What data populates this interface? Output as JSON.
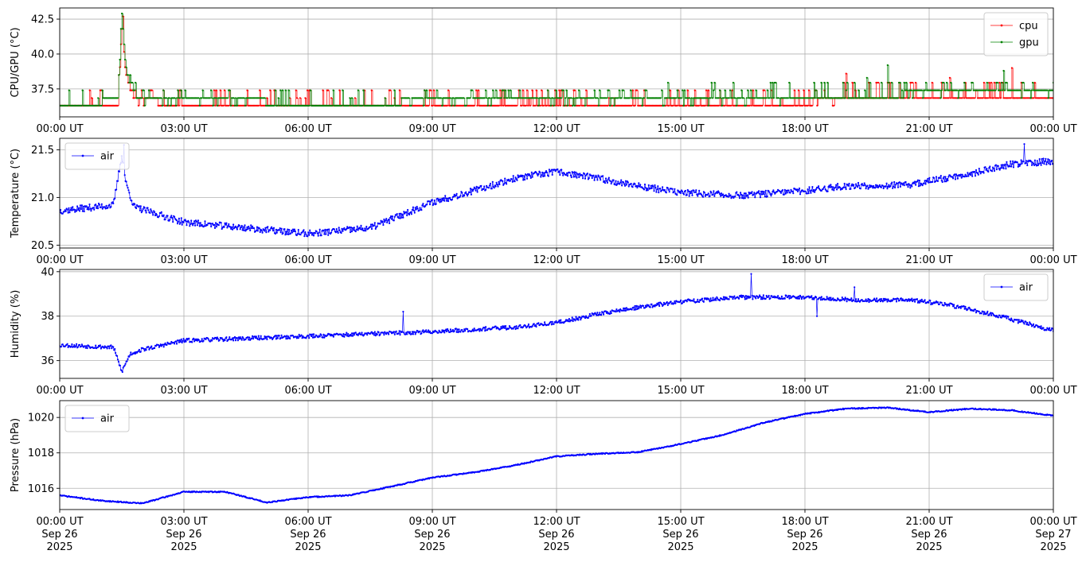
{
  "chart_data": [
    {
      "type": "line",
      "ylabel": "CPU/GPU (°C)",
      "ylim": [
        35.5,
        43.3
      ],
      "yticks": [
        37.5,
        40.0,
        42.5
      ],
      "ytick_labels": [
        "37.5",
        "40.0",
        "42.5"
      ],
      "xlim": [
        0,
        24
      ],
      "xticks": [
        0,
        3,
        6,
        9,
        12,
        15,
        18,
        21,
        24
      ],
      "xtick_labels": [
        "00:00 UT",
        "03:00 UT",
        "06:00 UT",
        "09:00 UT",
        "12:00 UT",
        "15:00 UT",
        "18:00 UT",
        "21:00 UT",
        "00:00 UT"
      ],
      "grid": true,
      "legend_position": "upper right",
      "series": [
        {
          "name": "cpu",
          "color": "#ff0000",
          "knots": [
            [
              0,
              36.4
            ],
            [
              1.4,
              36.4
            ],
            [
              1.5,
              42.0
            ],
            [
              1.55,
              40.0
            ],
            [
              1.6,
              38.5
            ],
            [
              1.7,
              37.5
            ],
            [
              1.85,
              36.6
            ],
            [
              6,
              36.4
            ],
            [
              9,
              36.4
            ],
            [
              12,
              36.4
            ],
            [
              15,
              36.4
            ],
            [
              18,
              36.5
            ],
            [
              19,
              36.9
            ],
            [
              21,
              37.0
            ],
            [
              24,
              37.0
            ]
          ],
          "noise": 0.55,
          "spikes": [
            [
              1.52,
              42.7
            ],
            [
              19.0,
              38.6
            ],
            [
              23.0,
              39.0
            ],
            [
              21.5,
              38.3
            ]
          ],
          "n": 960,
          "seed": 11
        },
        {
          "name": "gpu",
          "color": "#008000",
          "knots": [
            [
              0,
              36.5
            ],
            [
              1.4,
              36.6
            ],
            [
              1.5,
              42.8
            ],
            [
              1.55,
              40.5
            ],
            [
              1.6,
              38.8
            ],
            [
              1.75,
              37.3
            ],
            [
              1.9,
              36.8
            ],
            [
              6,
              36.5
            ],
            [
              9,
              36.6
            ],
            [
              12,
              36.7
            ],
            [
              15,
              36.7
            ],
            [
              18,
              36.9
            ],
            [
              19,
              37.0
            ],
            [
              21,
              37.2
            ],
            [
              24,
              37.3
            ]
          ],
          "noise": 0.5,
          "spikes": [
            [
              1.51,
              42.9
            ],
            [
              20.0,
              39.2
            ],
            [
              22.8,
              38.8
            ],
            [
              19.5,
              38.3
            ]
          ],
          "n": 960,
          "seed": 23
        }
      ]
    },
    {
      "type": "line",
      "ylabel": "Temperature (°C)",
      "ylim": [
        20.47,
        21.62
      ],
      "yticks": [
        20.5,
        21.0,
        21.5
      ],
      "ytick_labels": [
        "20.5",
        "21.0",
        "21.5"
      ],
      "xlim": [
        0,
        24
      ],
      "xticks": [
        0,
        3,
        6,
        9,
        12,
        15,
        18,
        21,
        24
      ],
      "xtick_labels": [
        "00:00 UT",
        "03:00 UT",
        "06:00 UT",
        "09:00 UT",
        "12:00 UT",
        "15:00 UT",
        "18:00 UT",
        "21:00 UT",
        "00:00 UT"
      ],
      "grid": true,
      "legend_position": "upper left",
      "series": [
        {
          "name": "air",
          "color": "#0000ff",
          "knots": [
            [
              0,
              20.86
            ],
            [
              1.3,
              20.92
            ],
            [
              1.5,
              21.45
            ],
            [
              1.6,
              21.15
            ],
            [
              1.8,
              20.9
            ],
            [
              3,
              20.74
            ],
            [
              4.5,
              20.68
            ],
            [
              6,
              20.62
            ],
            [
              7.5,
              20.68
            ],
            [
              9,
              20.95
            ],
            [
              10,
              21.07
            ],
            [
              11,
              21.2
            ],
            [
              12,
              21.27
            ],
            [
              13,
              21.2
            ],
            [
              14,
              21.12
            ],
            [
              15,
              21.05
            ],
            [
              16.5,
              21.02
            ],
            [
              18,
              21.07
            ],
            [
              19,
              21.12
            ],
            [
              20.5,
              21.13
            ],
            [
              22,
              21.25
            ],
            [
              23,
              21.35
            ],
            [
              24,
              21.38
            ]
          ],
          "noise": 0.035,
          "spikes": [
            [
              1.55,
              21.55
            ],
            [
              23.3,
              21.56
            ]
          ],
          "n": 1300,
          "seed": 37
        }
      ]
    },
    {
      "type": "line",
      "ylabel": "Humidity (%)",
      "ylim": [
        35.2,
        40.1
      ],
      "yticks": [
        36,
        38,
        40
      ],
      "ytick_labels": [
        "36",
        "38",
        "40"
      ],
      "xlim": [
        0,
        24
      ],
      "xticks": [
        0,
        3,
        6,
        9,
        12,
        15,
        18,
        21,
        24
      ],
      "xtick_labels": [
        "00:00 UT",
        "03:00 UT",
        "06:00 UT",
        "09:00 UT",
        "12:00 UT",
        "15:00 UT",
        "18:00 UT",
        "21:00 UT",
        "00:00 UT"
      ],
      "grid": true,
      "legend_position": "upper right",
      "series": [
        {
          "name": "air",
          "color": "#0000ff",
          "knots": [
            [
              0,
              36.7
            ],
            [
              1.3,
              36.6
            ],
            [
              1.5,
              35.5
            ],
            [
              1.7,
              36.3
            ],
            [
              2,
              36.5
            ],
            [
              3,
              36.9
            ],
            [
              6,
              37.1
            ],
            [
              9,
              37.3
            ],
            [
              11,
              37.5
            ],
            [
              12,
              37.7
            ],
            [
              13,
              38.1
            ],
            [
              14,
              38.4
            ],
            [
              15,
              38.65
            ],
            [
              16.5,
              38.85
            ],
            [
              18,
              38.85
            ],
            [
              19.5,
              38.7
            ],
            [
              20.5,
              38.75
            ],
            [
              21.5,
              38.5
            ],
            [
              22.5,
              38.1
            ],
            [
              23.3,
              37.7
            ],
            [
              24,
              37.35
            ]
          ],
          "noise": 0.09,
          "spikes": [
            [
              16.7,
              39.9
            ],
            [
              8.3,
              38.2
            ],
            [
              18.3,
              38.0
            ],
            [
              19.2,
              39.3
            ]
          ],
          "n": 1300,
          "seed": 53
        }
      ]
    },
    {
      "type": "line",
      "ylabel": "Pressure (hPa)",
      "ylim": [
        1014.8,
        1020.95
      ],
      "yticks": [
        1016,
        1018,
        1020
      ],
      "ytick_labels": [
        "1016",
        "1018",
        "1020"
      ],
      "xlim": [
        0,
        24
      ],
      "xticks": [
        0,
        3,
        6,
        9,
        12,
        15,
        18,
        21,
        24
      ],
      "xtick_labels": [
        "00:00 UT\nSep 26\n2025",
        "03:00 UT\nSep 26\n2025",
        "06:00 UT\nSep 26\n2025",
        "09:00 UT\nSep 26\n2025",
        "12:00 UT\nSep 26\n2025",
        "15:00 UT\nSep 26\n2025",
        "18:00 UT\nSep 26\n2025",
        "21:00 UT\nSep 26\n2025",
        "00:00 UT\nSep 27\n2025"
      ],
      "grid": true,
      "legend_position": "upper left",
      "series": [
        {
          "name": "air",
          "color": "#0000ff",
          "knots": [
            [
              0,
              1015.6
            ],
            [
              1,
              1015.3
            ],
            [
              2,
              1015.15
            ],
            [
              3,
              1015.8
            ],
            [
              4,
              1015.8
            ],
            [
              5,
              1015.2
            ],
            [
              6,
              1015.5
            ],
            [
              7,
              1015.6
            ],
            [
              8,
              1016.1
            ],
            [
              9,
              1016.6
            ],
            [
              10,
              1016.9
            ],
            [
              11,
              1017.3
            ],
            [
              12,
              1017.8
            ],
            [
              13,
              1017.95
            ],
            [
              14,
              1018.05
            ],
            [
              15,
              1018.5
            ],
            [
              16,
              1019.0
            ],
            [
              17,
              1019.7
            ],
            [
              18,
              1020.2
            ],
            [
              19,
              1020.5
            ],
            [
              20,
              1020.55
            ],
            [
              21,
              1020.3
            ],
            [
              22,
              1020.5
            ],
            [
              23,
              1020.4
            ],
            [
              24,
              1020.1
            ]
          ],
          "noise": 0.03,
          "spikes": [],
          "n": 1300,
          "seed": 71
        }
      ]
    }
  ]
}
